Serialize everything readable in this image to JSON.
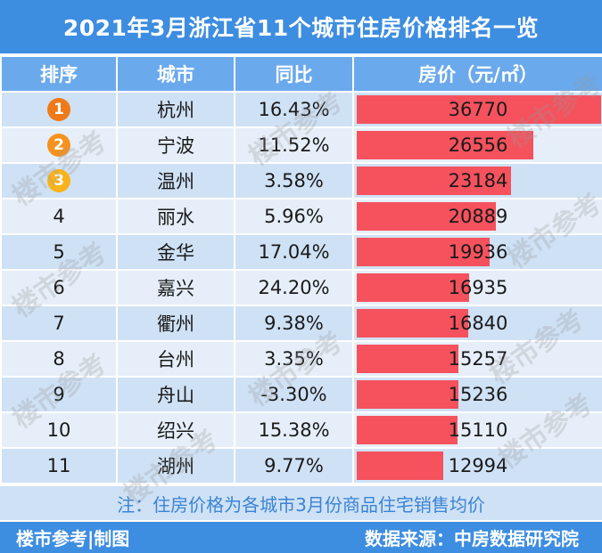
{
  "title": "2021年3月浙江省11个城市住房价格排名一览",
  "headers": {
    "rank": "排序",
    "city": "城市",
    "yoy": "同比",
    "price": "房价（元/㎡）"
  },
  "chart_data": {
    "type": "bar",
    "title": "2021年3月浙江省11个城市住房价格排名一览",
    "ylabel": "房价（元/㎡）",
    "categories": [
      "杭州",
      "宁波",
      "温州",
      "丽水",
      "金华",
      "嘉兴",
      "衢州",
      "台州",
      "舟山",
      "绍兴",
      "湖州"
    ],
    "ranks": [
      "1",
      "2",
      "3",
      "4",
      "5",
      "6",
      "7",
      "8",
      "9",
      "10",
      "11"
    ],
    "yoy": [
      "16.43%",
      "11.52%",
      "3.58%",
      "5.96%",
      "17.04%",
      "24.20%",
      "9.38%",
      "3.35%",
      "-3.30%",
      "15.38%",
      "9.77%"
    ],
    "values": [
      36770,
      26556,
      23184,
      20889,
      19936,
      16935,
      16840,
      15257,
      15236,
      15110,
      12994
    ],
    "xlim": [
      0,
      36770
    ]
  },
  "colors": {
    "header_blue": "#3d8de0",
    "bar_red": "#f5525e",
    "medal_1": "#f07a1a",
    "medal_2": "#f5921f",
    "medal_3": "#f8b31c"
  },
  "note": "注：住房价格为各城市3月份商品住宅销售均价",
  "footer": {
    "left": "楼市参考|制图",
    "right": "数据来源：中房数据研究院"
  },
  "watermark": "楼市参考"
}
